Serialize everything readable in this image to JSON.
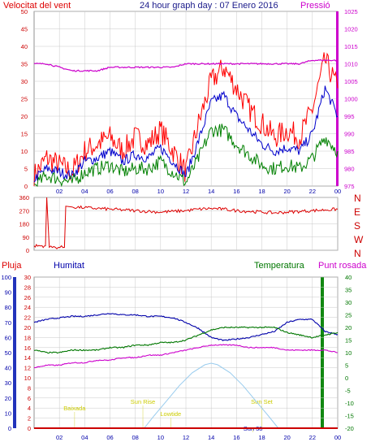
{
  "header": {
    "left_label": "Velocitat del vent",
    "title": "24 hour graph day : 07 Enero 2016",
    "right_label": "Pressió"
  },
  "colors": {
    "wind_gust": "#ff0000",
    "wind_avg": "#0000cc",
    "wind_min": "#008000",
    "pressure": "#cc00cc",
    "direction": "#dd0000",
    "rain": "#cc0000",
    "humidity": "#0000aa",
    "temperature": "#007700",
    "dewpoint": "#cc00cc",
    "solar_curve": "#99ccee",
    "grid": "#c8c8c8"
  },
  "x_ticks": [
    "02",
    "04",
    "06",
    "08",
    "10",
    "12",
    "14",
    "16",
    "18",
    "20",
    "22",
    "00"
  ],
  "chart_data": [
    {
      "type": "line",
      "name": "wind",
      "xlabel": "",
      "ylabel": "Velocitat del vent",
      "y2label": "Pressió",
      "ylim": [
        0,
        50
      ],
      "y2lim": [
        975,
        1025
      ],
      "yticks": [
        "0",
        "5",
        "10",
        "15",
        "20",
        "25",
        "30",
        "35",
        "40",
        "45",
        "50"
      ],
      "y2ticks": [
        "975",
        "980",
        "985",
        "990",
        "995",
        "1000",
        "1005",
        "1010",
        "1015",
        "1020",
        "1025"
      ],
      "x_hours": [
        0,
        1,
        2,
        3,
        4,
        5,
        6,
        7,
        8,
        9,
        10,
        11,
        12,
        13,
        14,
        15,
        16,
        17,
        18,
        19,
        20,
        21,
        22,
        23,
        24
      ],
      "series": [
        {
          "key": "gust",
          "values": [
            3,
            8,
            6,
            4,
            10,
            12,
            14,
            10,
            14,
            12,
            16,
            10,
            4,
            18,
            30,
            34,
            28,
            22,
            18,
            14,
            16,
            14,
            22,
            36,
            28
          ]
        },
        {
          "key": "avg",
          "values": [
            2,
            5,
            4,
            3,
            7,
            8,
            10,
            7,
            9,
            8,
            11,
            7,
            3,
            13,
            24,
            26,
            20,
            16,
            12,
            10,
            11,
            10,
            15,
            28,
            20
          ]
        },
        {
          "key": "min",
          "values": [
            0,
            3,
            2,
            1,
            4,
            5,
            6,
            4,
            5,
            5,
            7,
            4,
            1,
            8,
            16,
            16,
            12,
            9,
            6,
            5,
            6,
            5,
            8,
            14,
            10
          ]
        },
        {
          "key": "pressure",
          "values": [
            1010,
            1010,
            1009,
            1008,
            1008,
            1008,
            1009,
            1009,
            1009,
            1009,
            1009,
            1009,
            1010,
            1010,
            1010,
            1010,
            1010,
            1010,
            1010,
            1010,
            1010,
            1010,
            1011,
            1011,
            1011
          ]
        }
      ]
    },
    {
      "type": "line",
      "name": "wind_direction",
      "ylim": [
        0,
        360
      ],
      "yticks": [
        "0",
        "90",
        "180",
        "270",
        "360"
      ],
      "compass": [
        "N",
        "W",
        "S",
        "E",
        "N"
      ],
      "x_hours": [
        0,
        0.9,
        1.0,
        1.2,
        2.4,
        2.5,
        3,
        4,
        5,
        6,
        7,
        8,
        9,
        10,
        11,
        12,
        13,
        14,
        15,
        16,
        17,
        18,
        19,
        20,
        21,
        22,
        23,
        24
      ],
      "values": [
        30,
        30,
        360,
        20,
        20,
        300,
        295,
        290,
        285,
        280,
        275,
        270,
        265,
        260,
        265,
        270,
        280,
        285,
        280,
        270,
        265,
        260,
        255,
        260,
        265,
        270,
        275,
        280
      ]
    },
    {
      "type": "line",
      "name": "weather",
      "labels": {
        "rain": "Pluja",
        "humidity": "Humitat",
        "temperature": "Temperatura",
        "dewpoint": "Punt rosada"
      },
      "humidity_lim": [
        0,
        100
      ],
      "temp_lim": [
        -20,
        40
      ],
      "rain_lim": [
        0,
        30
      ],
      "humidity_ticks": [
        "0",
        "10",
        "20",
        "30",
        "40",
        "50",
        "60",
        "70",
        "80",
        "90",
        "100"
      ],
      "rain_ticks": [
        "0",
        "2",
        "4",
        "6",
        "8",
        "10",
        "12",
        "14",
        "16",
        "18",
        "20",
        "22",
        "24",
        "26",
        "28",
        "30"
      ],
      "temp_ticks": [
        "-20",
        "-15",
        "-10",
        "-5",
        "0",
        "5",
        "10",
        "15",
        "20",
        "25",
        "30",
        "35",
        "40"
      ],
      "x_hours": [
        0,
        1,
        2,
        3,
        4,
        5,
        6,
        7,
        8,
        9,
        10,
        11,
        12,
        13,
        14,
        15,
        16,
        17,
        18,
        19,
        20,
        21,
        22,
        23,
        24
      ],
      "humidity": [
        70,
        72,
        73,
        74,
        74,
        75,
        76,
        75,
        75,
        74,
        74,
        73,
        70,
        66,
        60,
        58,
        59,
        60,
        62,
        64,
        70,
        72,
        72,
        64,
        62
      ],
      "temperature": [
        11,
        10,
        10,
        11,
        11,
        11,
        12,
        12,
        13,
        13,
        14,
        14,
        15,
        17,
        19,
        20,
        20,
        20,
        20,
        20,
        18,
        17,
        16,
        17,
        18
      ],
      "dewpoint": [
        4,
        5,
        5,
        6,
        6,
        7,
        7,
        8,
        8,
        9,
        9,
        10,
        11,
        12,
        13,
        13,
        13,
        12,
        12,
        12,
        11,
        11,
        11,
        11,
        10
      ],
      "rain": [
        0,
        0,
        0,
        0,
        0,
        0,
        0,
        0,
        0,
        0,
        0,
        0,
        0,
        0,
        0,
        0,
        0,
        0,
        0,
        0,
        0,
        0,
        0,
        0,
        0
      ],
      "solar_curve": {
        "x_hours": [
          8.7,
          9.5,
          10.5,
          11.5,
          12.5,
          13.5,
          14,
          14.5,
          15.5,
          16.5,
          17.5,
          18.5,
          19.3
        ],
        "values": [
          0,
          2.5,
          5.5,
          8.5,
          11,
          12.6,
          12.9,
          12.6,
          11,
          8.5,
          5.5,
          2.5,
          0
        ]
      },
      "events": [
        {
          "label": "Baixada",
          "hour": 3.2
        },
        {
          "label": "Sun Rise",
          "hour": 8.6
        },
        {
          "label": "Lowtide",
          "hour": 10.8
        },
        {
          "label": "Sun 38",
          "hour": 17.3
        },
        {
          "label": "Sun Set",
          "hour": 18.0
        }
      ]
    }
  ]
}
